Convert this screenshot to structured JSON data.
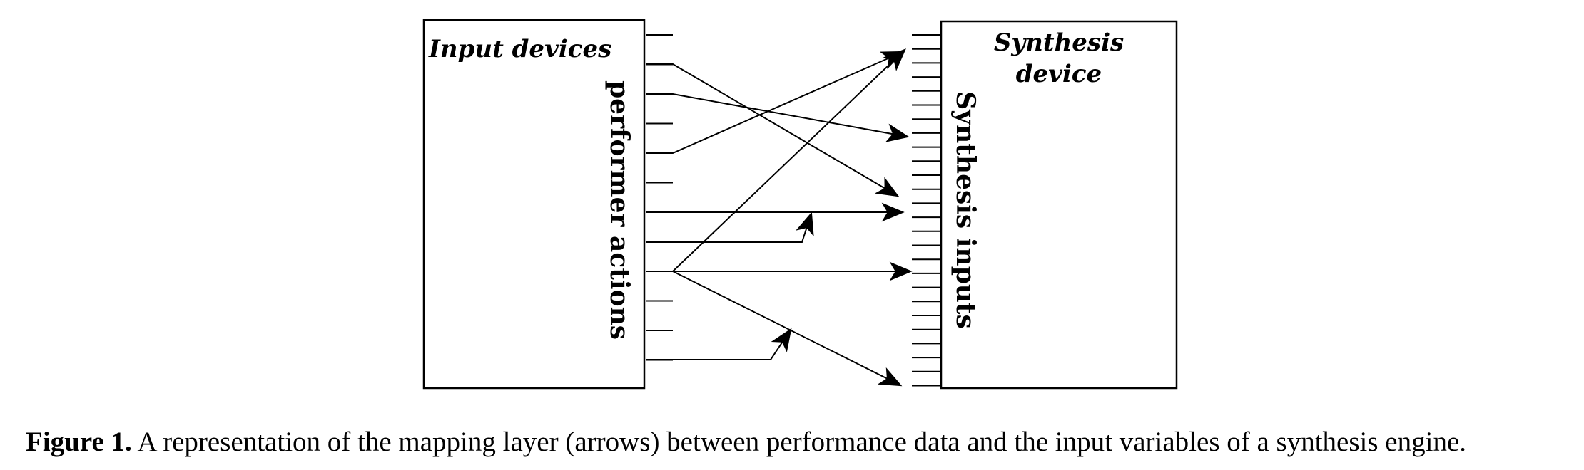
{
  "diagram": {
    "left_box": {
      "title": "Input devices",
      "side_label": "performer actions"
    },
    "right_box": {
      "title_line1": "Synthesis",
      "title_line2": "device",
      "side_label": "Synthesis inputs"
    }
  },
  "caption": {
    "label": "Figure 1.",
    "text": " A representation of the mapping layer (arrows) between performance data and the input variables of a synthesis engine."
  }
}
